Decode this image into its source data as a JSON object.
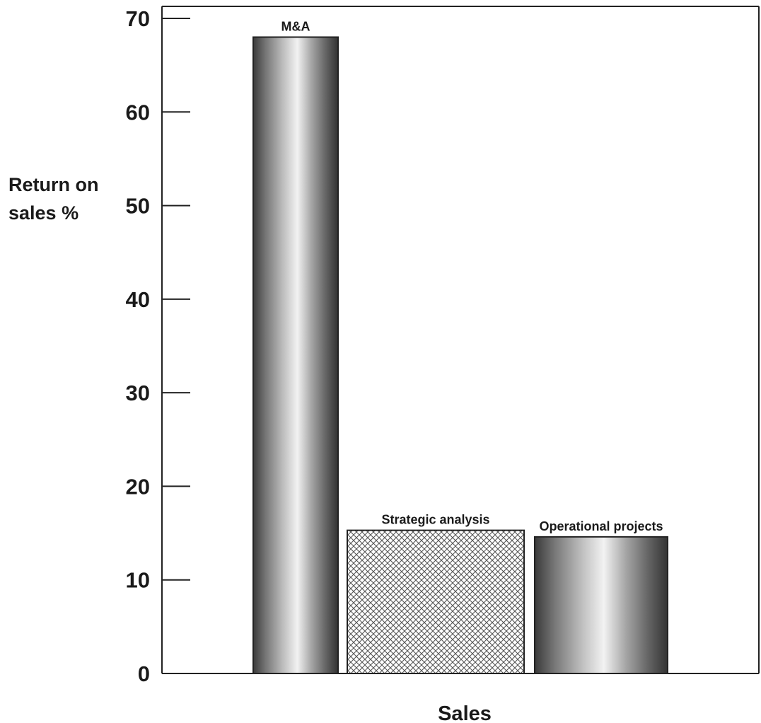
{
  "chart_data": {
    "type": "bar",
    "categories": [
      "M&A",
      "Strategic analysis",
      "Operational projects"
    ],
    "values": [
      68,
      15.3,
      14.6
    ],
    "bar_styles": [
      "metallic",
      "crosshatch",
      "metallic"
    ],
    "xlabel": "Sales",
    "ylabel_lines": [
      "Return on",
      "sales %"
    ],
    "ylim": [
      0,
      70
    ],
    "yticks": [
      0,
      10,
      20,
      30,
      40,
      50,
      60,
      70
    ],
    "grid": false,
    "legend": "none",
    "colors": {
      "metal_dark": "#3a3a3a",
      "metal_mid": "#8a8a8a",
      "metal_light": "#f2f2f2",
      "hatch": "#555555",
      "axis": "#222222",
      "text": "#1a1a1a"
    }
  }
}
